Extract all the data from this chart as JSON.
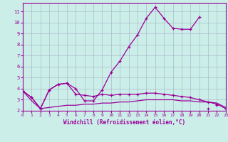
{
  "xlabel": "Windchill (Refroidissement éolien,°C)",
  "x_values": [
    0,
    1,
    2,
    3,
    4,
    5,
    6,
    7,
    8,
    9,
    10,
    11,
    12,
    13,
    14,
    15,
    16,
    17,
    18,
    19,
    20,
    21,
    22,
    23
  ],
  "line1": [
    3.8,
    3.2,
    2.2,
    3.9,
    4.4,
    4.5,
    4.0,
    2.9,
    2.9,
    3.9,
    5.5,
    6.5,
    7.8,
    8.9,
    10.4,
    11.4,
    10.4,
    9.5,
    9.4,
    9.4,
    10.5,
    null,
    null,
    null
  ],
  "line1b": [
    null,
    null,
    null,
    null,
    null,
    null,
    null,
    null,
    null,
    null,
    null,
    null,
    null,
    null,
    null,
    null,
    null,
    null,
    null,
    null,
    null,
    2.2,
    2.5,
    2.2
  ],
  "line2": [
    3.8,
    3.2,
    2.2,
    3.9,
    4.4,
    4.5,
    3.5,
    3.4,
    3.3,
    3.5,
    3.4,
    3.5,
    3.5,
    3.5,
    3.6,
    3.6,
    3.5,
    3.4,
    3.3,
    3.2,
    3.0,
    2.8,
    2.6,
    2.2
  ],
  "line3": [
    3.8,
    2.9,
    2.2,
    2.3,
    2.4,
    2.5,
    2.5,
    2.6,
    2.6,
    2.7,
    2.7,
    2.8,
    2.8,
    2.9,
    3.0,
    3.0,
    3.0,
    3.0,
    2.9,
    2.9,
    2.8,
    2.8,
    2.7,
    2.3
  ],
  "line_color": "#990099",
  "bg_color": "#cceee8",
  "grid_color": "#aabbcc",
  "xlim": [
    0,
    23
  ],
  "ylim": [
    2.0,
    11.8
  ],
  "yticks": [
    2,
    3,
    4,
    5,
    6,
    7,
    8,
    9,
    10,
    11
  ],
  "xticks": [
    0,
    1,
    2,
    3,
    4,
    5,
    6,
    7,
    8,
    9,
    10,
    11,
    12,
    13,
    14,
    15,
    16,
    17,
    18,
    19,
    20,
    21,
    22,
    23
  ]
}
